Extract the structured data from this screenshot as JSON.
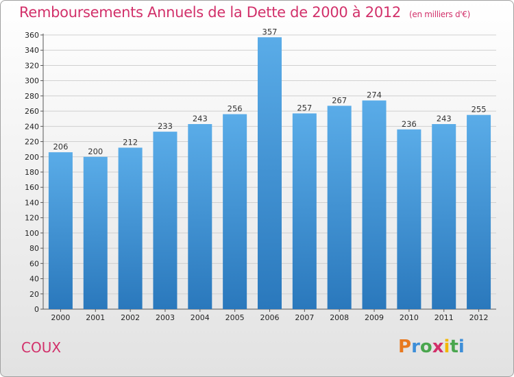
{
  "header": {
    "title": "Remboursements Annuels de la Dette de 2000 à 2012",
    "unit": "(en milliers d'€)"
  },
  "footer": {
    "commune": "COUX",
    "logo": {
      "letters": [
        "P",
        "r",
        "o",
        "x",
        "i",
        "t",
        "i"
      ],
      "colors": [
        "#e8791f",
        "#3d8ed8",
        "#4aa64e",
        "#d2306a",
        "#f2b705",
        "#4aa64e",
        "#3d8ed8"
      ]
    }
  },
  "colors": {
    "bar": "#3a8fd4",
    "bar_light": "#5aace8",
    "bar_dark": "#2a78bc",
    "accent": "#d2306a"
  },
  "chart_data": {
    "type": "bar",
    "title": "Remboursements Annuels de la Dette de 2000 à 2012",
    "categories": [
      "2000",
      "2001",
      "2002",
      "2003",
      "2004",
      "2005",
      "2006",
      "2007",
      "2008",
      "2009",
      "2010",
      "2011",
      "2012"
    ],
    "values": [
      206,
      200,
      212,
      233,
      243,
      256,
      357,
      257,
      267,
      274,
      236,
      243,
      255
    ],
    "ylim": [
      0,
      360
    ],
    "yticks": [
      0,
      20,
      40,
      60,
      80,
      100,
      120,
      140,
      160,
      180,
      200,
      220,
      240,
      260,
      280,
      300,
      320,
      340,
      360
    ],
    "grid": true,
    "xlabel": "",
    "ylabel": ""
  }
}
